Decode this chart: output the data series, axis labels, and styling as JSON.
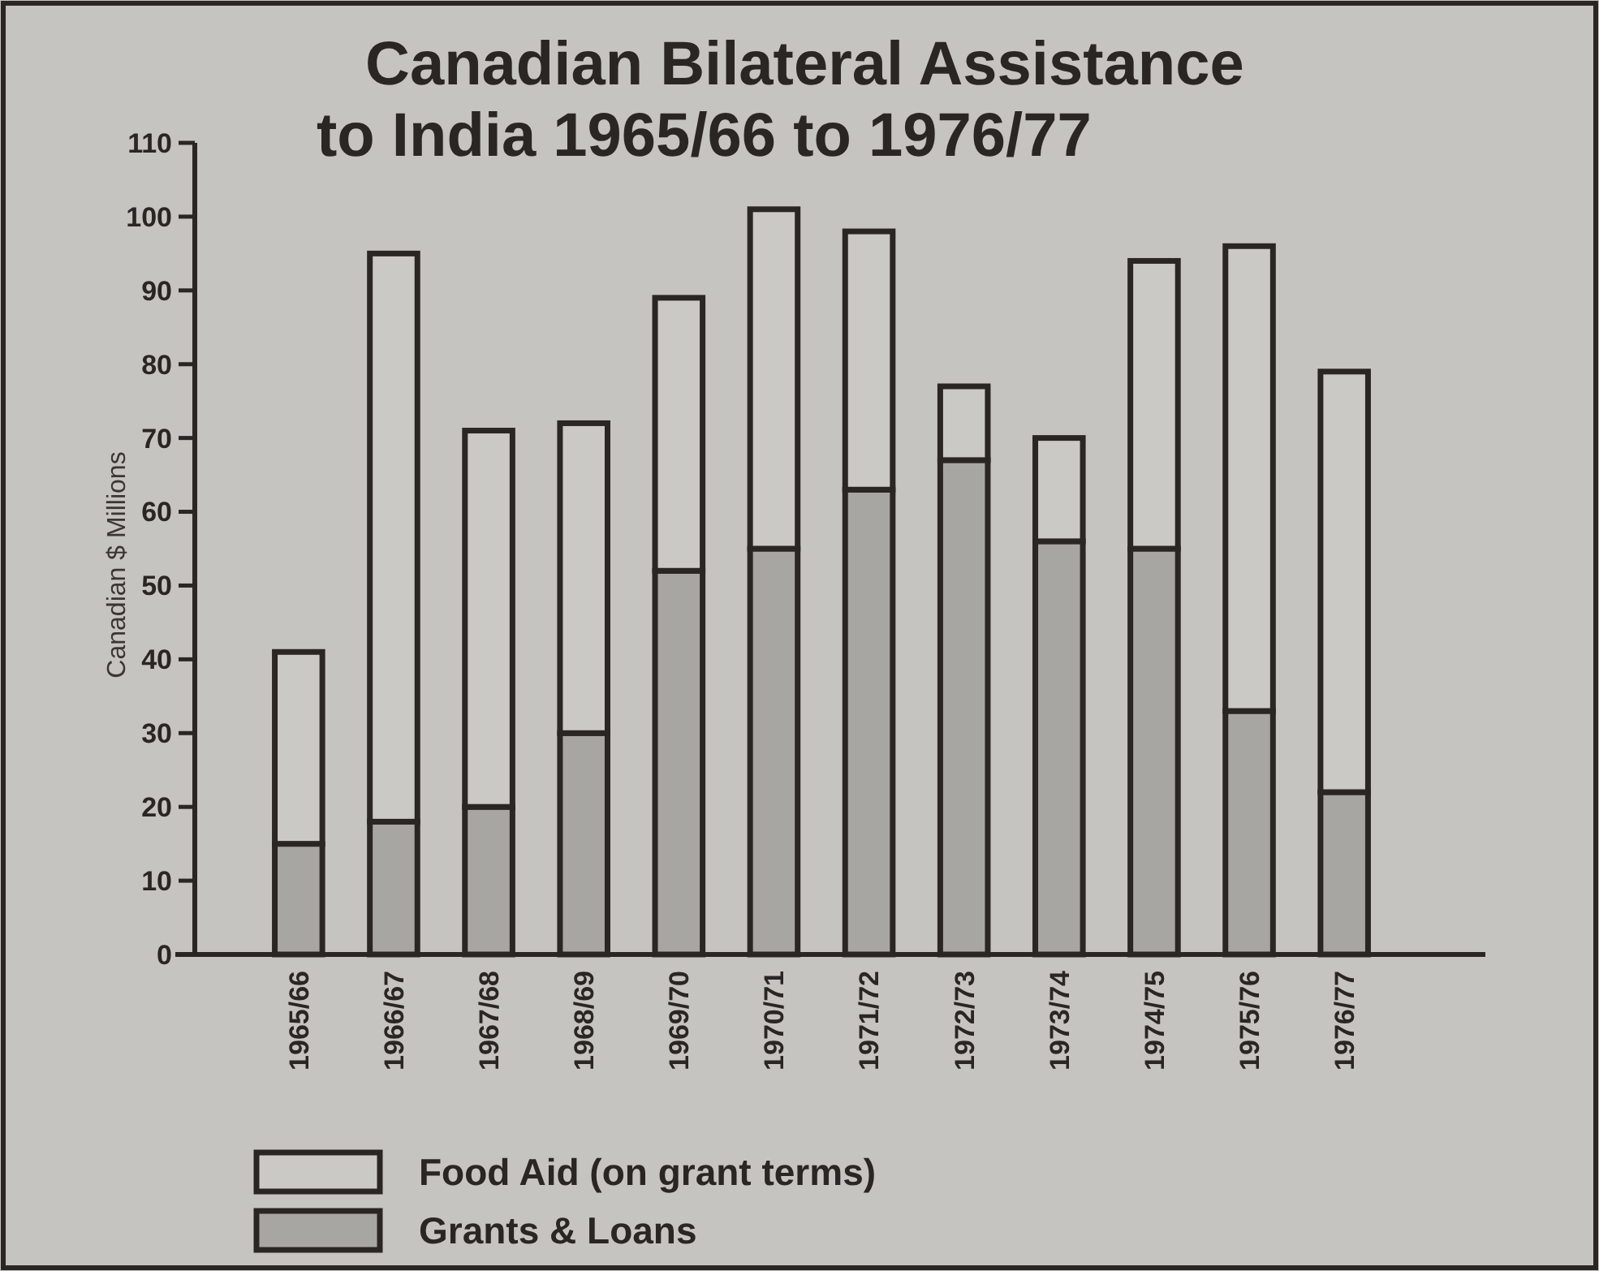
{
  "chart_data": {
    "type": "bar",
    "title": "Canadian Bilateral Assistance\nto India 1965/66 to 1976/77",
    "ylabel": "Canadian $ Millions",
    "categories": [
      "1965/66",
      "1966/67",
      "1967/68",
      "1968/69",
      "1969/70",
      "1970/71",
      "1971/72",
      "1972/73",
      "1973/74",
      "1974/75",
      "1975/76",
      "1976/77"
    ],
    "series": [
      {
        "name": "Grants & Loans",
        "color": "#a8a6a3",
        "values": [
          15,
          18,
          20,
          30,
          52,
          55,
          63,
          67,
          56,
          55,
          33,
          22
        ]
      },
      {
        "name": "Food Aid (on grant terms)",
        "color": "#cbc9c6",
        "values": [
          26,
          77,
          51,
          42,
          37,
          46,
          35,
          10,
          14,
          39,
          63,
          57
        ]
      }
    ],
    "stacked": true,
    "ylim": [
      0,
      110
    ],
    "yticks": [
      0,
      10,
      20,
      30,
      40,
      50,
      60,
      70,
      80,
      90,
      100,
      110
    ],
    "grid": false,
    "legend": "bottom"
  }
}
